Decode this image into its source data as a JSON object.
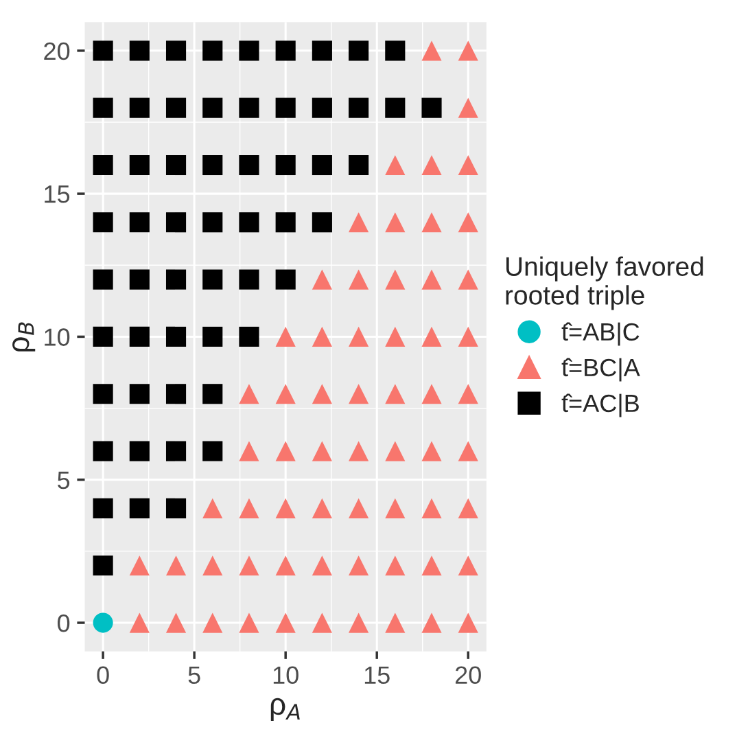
{
  "chart_data": {
    "type": "scatter",
    "xlabel": "ρ$_{A}$",
    "ylabel": "ρ$_{B}$",
    "legend_title": "Uniquely favored\nrooted triple",
    "legend": "right",
    "grid": true,
    "xlim": [
      -1,
      21
    ],
    "ylim": [
      -1,
      21
    ],
    "xticks": [
      0,
      5,
      10,
      15,
      20
    ],
    "yticks": [
      0,
      5,
      10,
      15,
      20
    ],
    "series": [
      {
        "name": "t̂=AB|C",
        "color": "#00bfc4",
        "marker": "circle",
        "x": [
          0
        ],
        "values": [
          0
        ]
      },
      {
        "name": "t̂=BC|A",
        "color": "#f8766d",
        "marker": "triangle",
        "x": [
          2,
          4,
          6,
          8,
          10,
          12,
          14,
          16,
          18,
          20,
          2,
          4,
          6,
          8,
          10,
          12,
          14,
          16,
          18,
          20,
          6,
          8,
          10,
          12,
          14,
          16,
          18,
          20,
          8,
          10,
          12,
          14,
          16,
          18,
          20,
          8,
          10,
          12,
          14,
          16,
          18,
          20,
          10,
          12,
          14,
          16,
          18,
          20,
          12,
          14,
          16,
          18,
          20,
          14,
          16,
          18,
          20,
          16,
          18,
          20,
          20,
          18,
          20
        ],
        "values": [
          0,
          0,
          0,
          0,
          0,
          0,
          0,
          0,
          0,
          0,
          2,
          2,
          2,
          2,
          2,
          2,
          2,
          2,
          2,
          2,
          4,
          4,
          4,
          4,
          4,
          4,
          4,
          4,
          6,
          6,
          6,
          6,
          6,
          6,
          6,
          8,
          8,
          8,
          8,
          8,
          8,
          8,
          10,
          10,
          10,
          10,
          10,
          10,
          12,
          12,
          12,
          12,
          12,
          14,
          14,
          14,
          14,
          16,
          16,
          16,
          18,
          20,
          20
        ]
      },
      {
        "name": "t̂=AC|B",
        "color": "#000000",
        "marker": "square",
        "x": [
          0,
          0,
          2,
          4,
          0,
          2,
          4,
          6,
          0,
          2,
          4,
          6,
          0,
          2,
          4,
          6,
          8,
          0,
          2,
          4,
          6,
          8,
          10,
          0,
          2,
          4,
          6,
          8,
          10,
          12,
          0,
          2,
          4,
          6,
          8,
          10,
          12,
          14,
          0,
          2,
          4,
          6,
          8,
          10,
          12,
          14,
          16,
          18,
          0,
          2,
          4,
          6,
          8,
          10,
          12,
          14,
          16
        ],
        "values": [
          2,
          4,
          4,
          4,
          6,
          6,
          6,
          6,
          8,
          8,
          8,
          8,
          10,
          10,
          10,
          10,
          10,
          12,
          12,
          12,
          12,
          12,
          12,
          14,
          14,
          14,
          14,
          14,
          14,
          14,
          16,
          16,
          16,
          16,
          16,
          16,
          16,
          16,
          18,
          18,
          18,
          18,
          18,
          18,
          18,
          18,
          18,
          18,
          20,
          20,
          20,
          20,
          20,
          20,
          20,
          20,
          20
        ]
      }
    ]
  }
}
